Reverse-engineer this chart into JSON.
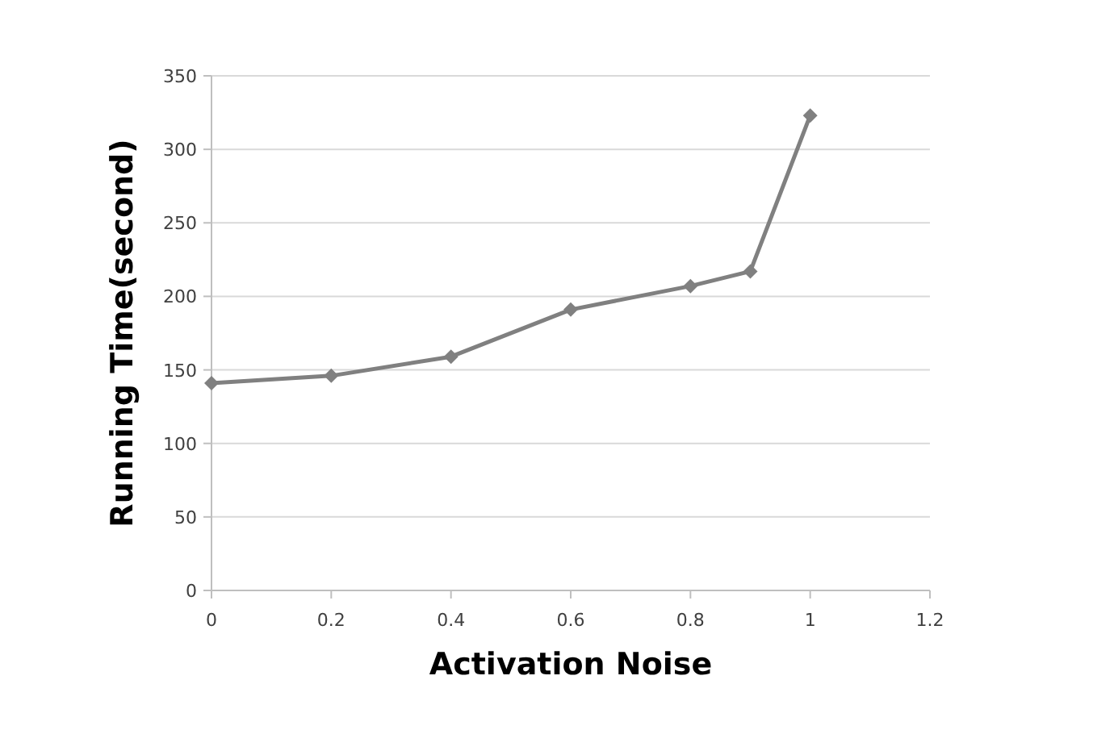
{
  "chart_data": {
    "type": "line",
    "xlabel": "Activation Noise",
    "ylabel": "Running Time(second)",
    "x": [
      0,
      0.2,
      0.4,
      0.6,
      0.8,
      0.9,
      1
    ],
    "series": [
      {
        "color": "#808080",
        "values": [
          141,
          146,
          159,
          191,
          207,
          217,
          323
        ]
      }
    ],
    "xlim": [
      0,
      1.2
    ],
    "xticks": [
      0,
      0.2,
      0.4,
      0.6,
      0.8,
      1,
      1.2
    ],
    "ylim": [
      0,
      350
    ],
    "yticks": [
      0,
      50,
      100,
      150,
      200,
      250,
      300,
      350
    ],
    "grid": "y",
    "marker": "diamond",
    "line_style": "solid"
  }
}
